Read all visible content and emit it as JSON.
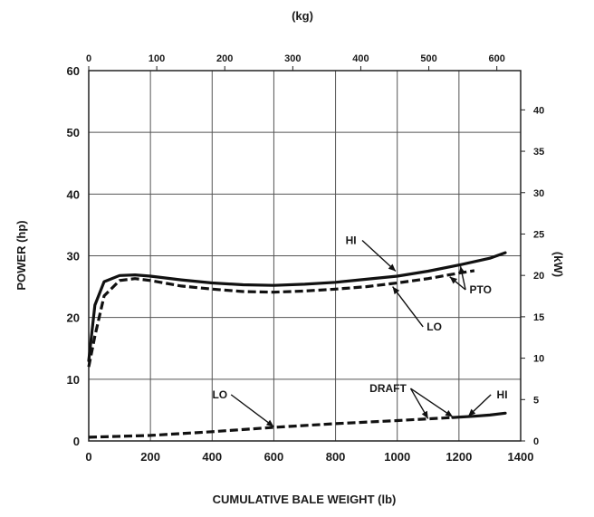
{
  "chart_data": {
    "type": "line",
    "xlabel": "CUMULATIVE BALE WEIGHT (lb)",
    "x2label": "(kg)",
    "ylabel": "POWER (hp)",
    "y2label": "(kW)",
    "xlim": [
      0,
      1400
    ],
    "ylim": [
      0,
      60
    ],
    "x_ticks": [
      0,
      200,
      400,
      600,
      800,
      1000,
      1200,
      1400
    ],
    "y_ticks": [
      0,
      10,
      20,
      30,
      40,
      50,
      60
    ],
    "x2_ticks": [
      0,
      100,
      200,
      300,
      400,
      500,
      600
    ],
    "y2_ticks": [
      0,
      5,
      10,
      15,
      20,
      25,
      30,
      35,
      40
    ],
    "grid": true,
    "series": [
      {
        "name": "HI",
        "group": "PTO",
        "style": "solid",
        "x": [
          0,
          20,
          50,
          100,
          150,
          200,
          300,
          400,
          500,
          600,
          700,
          800,
          900,
          1000,
          1100,
          1200,
          1300,
          1350
        ],
        "y": [
          13,
          22,
          25.8,
          26.8,
          26.9,
          26.7,
          26.1,
          25.6,
          25.3,
          25.2,
          25.4,
          25.7,
          26.2,
          26.7,
          27.5,
          28.5,
          29.6,
          30.5
        ]
      },
      {
        "name": "LO",
        "group": "PTO",
        "style": "dashed",
        "x": [
          0,
          20,
          50,
          100,
          150,
          200,
          300,
          400,
          500,
          600,
          700,
          800,
          900,
          1000,
          1100,
          1200,
          1250
        ],
        "y": [
          12,
          17,
          23.5,
          26.0,
          26.3,
          26.0,
          25.1,
          24.6,
          24.2,
          24.1,
          24.3,
          24.6,
          25.0,
          25.6,
          26.3,
          27.2,
          27.6
        ]
      },
      {
        "name": "HI",
        "group": "DRAFT",
        "style": "solid",
        "x": [
          1180,
          1250,
          1300,
          1350
        ],
        "y": [
          3.8,
          4.0,
          4.2,
          4.5
        ]
      },
      {
        "name": "LO",
        "group": "DRAFT",
        "style": "dashed",
        "x": [
          0,
          200,
          400,
          600,
          800,
          1000,
          1180
        ],
        "y": [
          0.6,
          0.9,
          1.5,
          2.2,
          2.8,
          3.3,
          3.8
        ]
      }
    ],
    "annotations": [
      {
        "text": "HI",
        "x": 850,
        "y": 32.5,
        "target_x": 995,
        "target_y": 27.5
      },
      {
        "text": "PTO",
        "x": 1270,
        "y": 24.5,
        "target_x": 1205,
        "target_y": 28.3,
        "target2_x": 1170,
        "target2_y": 26.6
      },
      {
        "text": "LO",
        "x": 1120,
        "y": 18.5,
        "target_x": 985,
        "target_y": 25.0
      },
      {
        "text": "LO",
        "x": 425,
        "y": 7.5,
        "target_x": 600,
        "target_y": 2.3
      },
      {
        "text": "DRAFT",
        "x": 970,
        "y": 8.5,
        "target_x": 1180,
        "target_y": 3.9,
        "target2_x": 1100,
        "target2_y": 3.6
      },
      {
        "text": "HI",
        "x": 1340,
        "y": 7.5,
        "target_x": 1230,
        "target_y": 4.0
      }
    ]
  }
}
